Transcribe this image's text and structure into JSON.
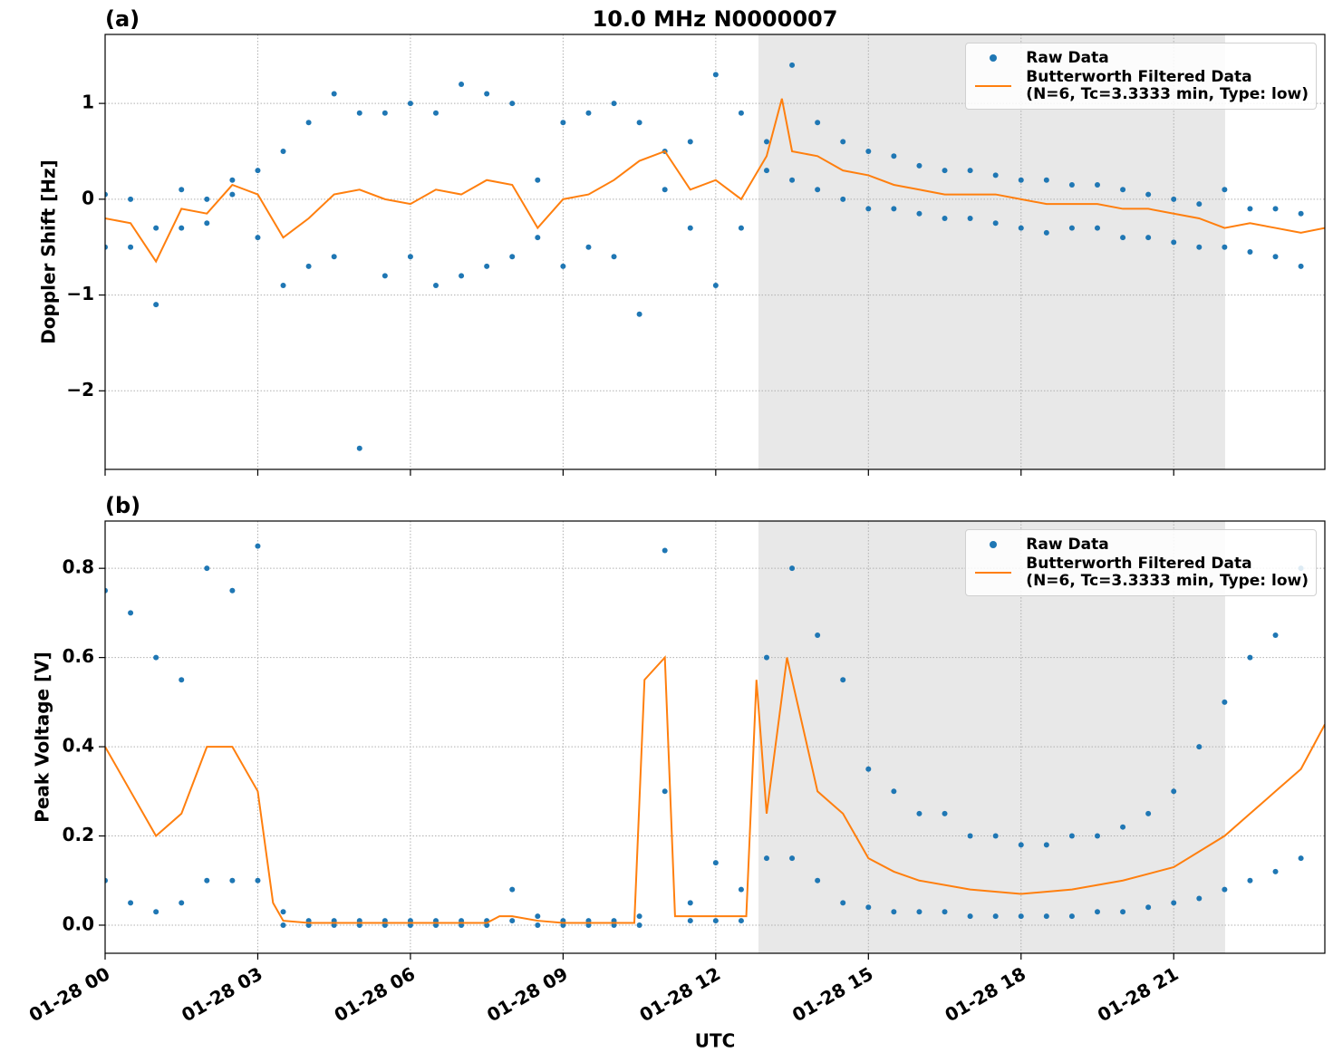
{
  "chart_data": [
    {
      "type": "scatter_line",
      "title": "10.0 MHz N0000007",
      "panel_label": "(a)",
      "y_label": "Doppler Shift [Hz]",
      "xlim": [
        0,
        23.97
      ],
      "ylim": [
        -2.82,
        1.72
      ],
      "yticks": [
        {
          "value": -2,
          "label": "−2"
        },
        {
          "value": -1,
          "label": "−1"
        },
        0,
        1
      ],
      "grid": true,
      "shaded_span": [
        12.84,
        22.01
      ],
      "shade_color": "#e8e8e8",
      "legend": "upper right",
      "series": [
        {
          "name": "Raw Data",
          "color": "#1f77b4",
          "kind": "points",
          "x": [
            0,
            0,
            0.5,
            0.5,
            1,
            1,
            1.5,
            1.5,
            2,
            2,
            2.5,
            2.5,
            3,
            3,
            3.5,
            3.5,
            4,
            4,
            4.5,
            4.5,
            5,
            5,
            5.5,
            5.5,
            6,
            6,
            6.5,
            6.5,
            7,
            7,
            7.5,
            7.5,
            8,
            8,
            8.5,
            8.5,
            9,
            9,
            9.5,
            9.5,
            10,
            10,
            10.5,
            10.5,
            11,
            11,
            11.5,
            11.5,
            12,
            12,
            12.5,
            12.5,
            13,
            13,
            13.5,
            13.5,
            14,
            14,
            14.5,
            14.5,
            15,
            15,
            15.5,
            15.5,
            16,
            16,
            16.5,
            16.5,
            17,
            17,
            17.5,
            17.5,
            18,
            18,
            18.5,
            18.5,
            19,
            19,
            19.5,
            19.5,
            20,
            20,
            20.5,
            20.5,
            21,
            21,
            21.5,
            21.5,
            22,
            22,
            22.5,
            22.5,
            23,
            23,
            23.5,
            23.5
          ],
          "values": [
            0.05,
            -0.5,
            0.0,
            -0.5,
            -0.3,
            -1.1,
            0.1,
            -0.3,
            0.0,
            -0.25,
            0.2,
            0.05,
            0.3,
            -0.4,
            0.5,
            -0.9,
            0.8,
            -0.7,
            1.1,
            -0.6,
            0.9,
            -2.6,
            0.9,
            -0.8,
            1.0,
            -0.6,
            0.9,
            -0.9,
            1.2,
            -0.8,
            1.1,
            -0.7,
            1.0,
            -0.6,
            0.2,
            -0.4,
            0.8,
            -0.7,
            0.9,
            -0.5,
            1.0,
            -0.6,
            0.8,
            -1.2,
            0.5,
            0.1,
            0.6,
            -0.3,
            1.3,
            -0.9,
            0.9,
            -0.3,
            0.6,
            0.3,
            1.4,
            0.2,
            0.8,
            0.1,
            0.6,
            0.0,
            0.5,
            -0.1,
            0.45,
            -0.1,
            0.35,
            -0.15,
            0.3,
            -0.2,
            0.3,
            -0.2,
            0.25,
            -0.25,
            0.2,
            -0.3,
            0.2,
            -0.35,
            0.15,
            -0.3,
            0.15,
            -0.3,
            0.1,
            -0.4,
            0.05,
            -0.4,
            0.0,
            -0.45,
            -0.05,
            -0.5,
            0.1,
            -0.5,
            -0.1,
            -0.55,
            -0.1,
            -0.6,
            -0.15,
            -0.7
          ]
        },
        {
          "name": "Butterworth Filtered Data\n(N=6, Tc=3.3333 min, Type: low)",
          "color": "#ff7f0e",
          "kind": "line",
          "x": [
            0,
            0.5,
            1,
            1.5,
            2,
            2.5,
            3,
            3.5,
            4,
            4.5,
            5,
            5.5,
            6,
            6.5,
            7,
            7.5,
            8,
            8.5,
            9,
            9.5,
            10,
            10.5,
            11,
            11.5,
            12,
            12.5,
            13,
            13.3,
            13.5,
            14,
            14.5,
            15,
            15.5,
            16,
            16.5,
            17,
            17.5,
            18,
            18.5,
            19,
            19.5,
            20,
            20.5,
            21,
            21.5,
            22,
            22.5,
            23,
            23.5,
            23.97
          ],
          "values": [
            -0.2,
            -0.25,
            -0.65,
            -0.1,
            -0.15,
            0.15,
            0.05,
            -0.4,
            -0.2,
            0.05,
            0.1,
            0.0,
            -0.05,
            0.1,
            0.05,
            0.2,
            0.15,
            -0.3,
            0.0,
            0.05,
            0.2,
            0.4,
            0.5,
            0.1,
            0.2,
            0.0,
            0.45,
            1.05,
            0.5,
            0.45,
            0.3,
            0.25,
            0.15,
            0.1,
            0.05,
            0.05,
            0.05,
            0.0,
            -0.05,
            -0.05,
            -0.05,
            -0.1,
            -0.1,
            -0.15,
            -0.2,
            -0.3,
            -0.25,
            -0.3,
            -0.35,
            -0.3
          ]
        }
      ]
    },
    {
      "type": "scatter_line",
      "panel_label": "(b)",
      "y_label": "Peak Voltage [V]",
      "x_label": "UTC",
      "xlim": [
        0,
        23.97
      ],
      "ylim": [
        -0.063,
        0.906
      ],
      "xticks": [
        {
          "value": 0,
          "label": "01-28 00"
        },
        {
          "value": 3,
          "label": "01-28 03"
        },
        {
          "value": 6,
          "label": "01-28 06"
        },
        {
          "value": 9,
          "label": "01-28 09"
        },
        {
          "value": 12,
          "label": "01-28 12"
        },
        {
          "value": 15,
          "label": "01-28 15"
        },
        {
          "value": 18,
          "label": "01-28 18"
        },
        {
          "value": 21,
          "label": "01-28 21"
        }
      ],
      "yticks": [
        {
          "value": 0,
          "label": "0.0"
        },
        0.2,
        0.4,
        0.6,
        0.8
      ],
      "grid": true,
      "shaded_span": [
        12.84,
        22.01
      ],
      "shade_color": "#e8e8e8",
      "legend": "upper right",
      "series": [
        {
          "name": "Raw Data",
          "color": "#1f77b4",
          "kind": "points",
          "x": [
            0,
            0,
            0.5,
            0.5,
            1,
            1,
            1.5,
            1.5,
            2,
            2,
            2.5,
            2.5,
            3,
            3,
            3.5,
            3.5,
            4,
            4,
            4.5,
            4.5,
            5,
            5,
            5.5,
            5.5,
            6,
            6,
            6.5,
            6.5,
            7,
            7,
            7.5,
            7.5,
            8,
            8,
            8.5,
            8.5,
            9,
            9,
            9.5,
            9.5,
            10,
            10,
            10.5,
            10.5,
            11,
            11,
            11.5,
            11.5,
            12,
            12,
            12.5,
            12.5,
            13,
            13,
            13.5,
            13.5,
            14,
            14,
            14.5,
            14.5,
            15,
            15,
            15.5,
            15.5,
            16,
            16,
            16.5,
            16.5,
            17,
            17,
            17.5,
            17.5,
            18,
            18,
            18.5,
            18.5,
            19,
            19,
            19.5,
            19.5,
            20,
            20,
            20.5,
            20.5,
            21,
            21,
            21.5,
            21.5,
            22,
            22,
            22.5,
            22.5,
            23,
            23,
            23.5,
            23.5
          ],
          "values": [
            0.75,
            0.1,
            0.7,
            0.05,
            0.6,
            0.03,
            0.55,
            0.05,
            0.8,
            0.1,
            0.75,
            0.1,
            0.85,
            0.1,
            0.03,
            0.0,
            0.01,
            0.0,
            0.01,
            0.0,
            0.01,
            0.0,
            0.01,
            0.0,
            0.01,
            0.0,
            0.01,
            0.0,
            0.01,
            0.0,
            0.01,
            0.0,
            0.08,
            0.01,
            0.02,
            0.0,
            0.01,
            0.0,
            0.01,
            0.0,
            0.01,
            0.0,
            0.02,
            0.0,
            0.84,
            0.3,
            0.05,
            0.01,
            0.14,
            0.01,
            0.08,
            0.01,
            0.6,
            0.15,
            0.8,
            0.15,
            0.65,
            0.1,
            0.55,
            0.05,
            0.35,
            0.04,
            0.3,
            0.03,
            0.25,
            0.03,
            0.25,
            0.03,
            0.2,
            0.02,
            0.2,
            0.02,
            0.18,
            0.02,
            0.18,
            0.02,
            0.2,
            0.02,
            0.2,
            0.03,
            0.22,
            0.03,
            0.25,
            0.04,
            0.3,
            0.05,
            0.4,
            0.06,
            0.5,
            0.08,
            0.6,
            0.1,
            0.65,
            0.12,
            0.8,
            0.15
          ]
        },
        {
          "name": "Butterworth Filtered Data\n(N=6, Tc=3.3333 min, Type: low)",
          "color": "#ff7f0e",
          "kind": "line",
          "x": [
            0,
            0.5,
            1,
            1.5,
            2,
            2.5,
            3,
            3.3,
            3.5,
            4,
            5,
            6,
            7,
            7.5,
            7.75,
            8,
            8.5,
            9,
            10,
            10.4,
            10.6,
            11,
            11.2,
            12,
            12.6,
            12.8,
            13,
            13.4,
            14,
            14.5,
            15,
            15.5,
            16,
            17,
            18,
            19,
            20,
            21,
            22,
            22.5,
            23,
            23.5,
            23.97
          ],
          "values": [
            0.4,
            0.3,
            0.2,
            0.25,
            0.4,
            0.4,
            0.3,
            0.05,
            0.01,
            0.005,
            0.005,
            0.005,
            0.005,
            0.005,
            0.02,
            0.02,
            0.01,
            0.005,
            0.005,
            0.005,
            0.55,
            0.6,
            0.02,
            0.02,
            0.02,
            0.55,
            0.25,
            0.6,
            0.3,
            0.25,
            0.15,
            0.12,
            0.1,
            0.08,
            0.07,
            0.08,
            0.1,
            0.13,
            0.2,
            0.25,
            0.3,
            0.35,
            0.45
          ]
        }
      ]
    }
  ]
}
